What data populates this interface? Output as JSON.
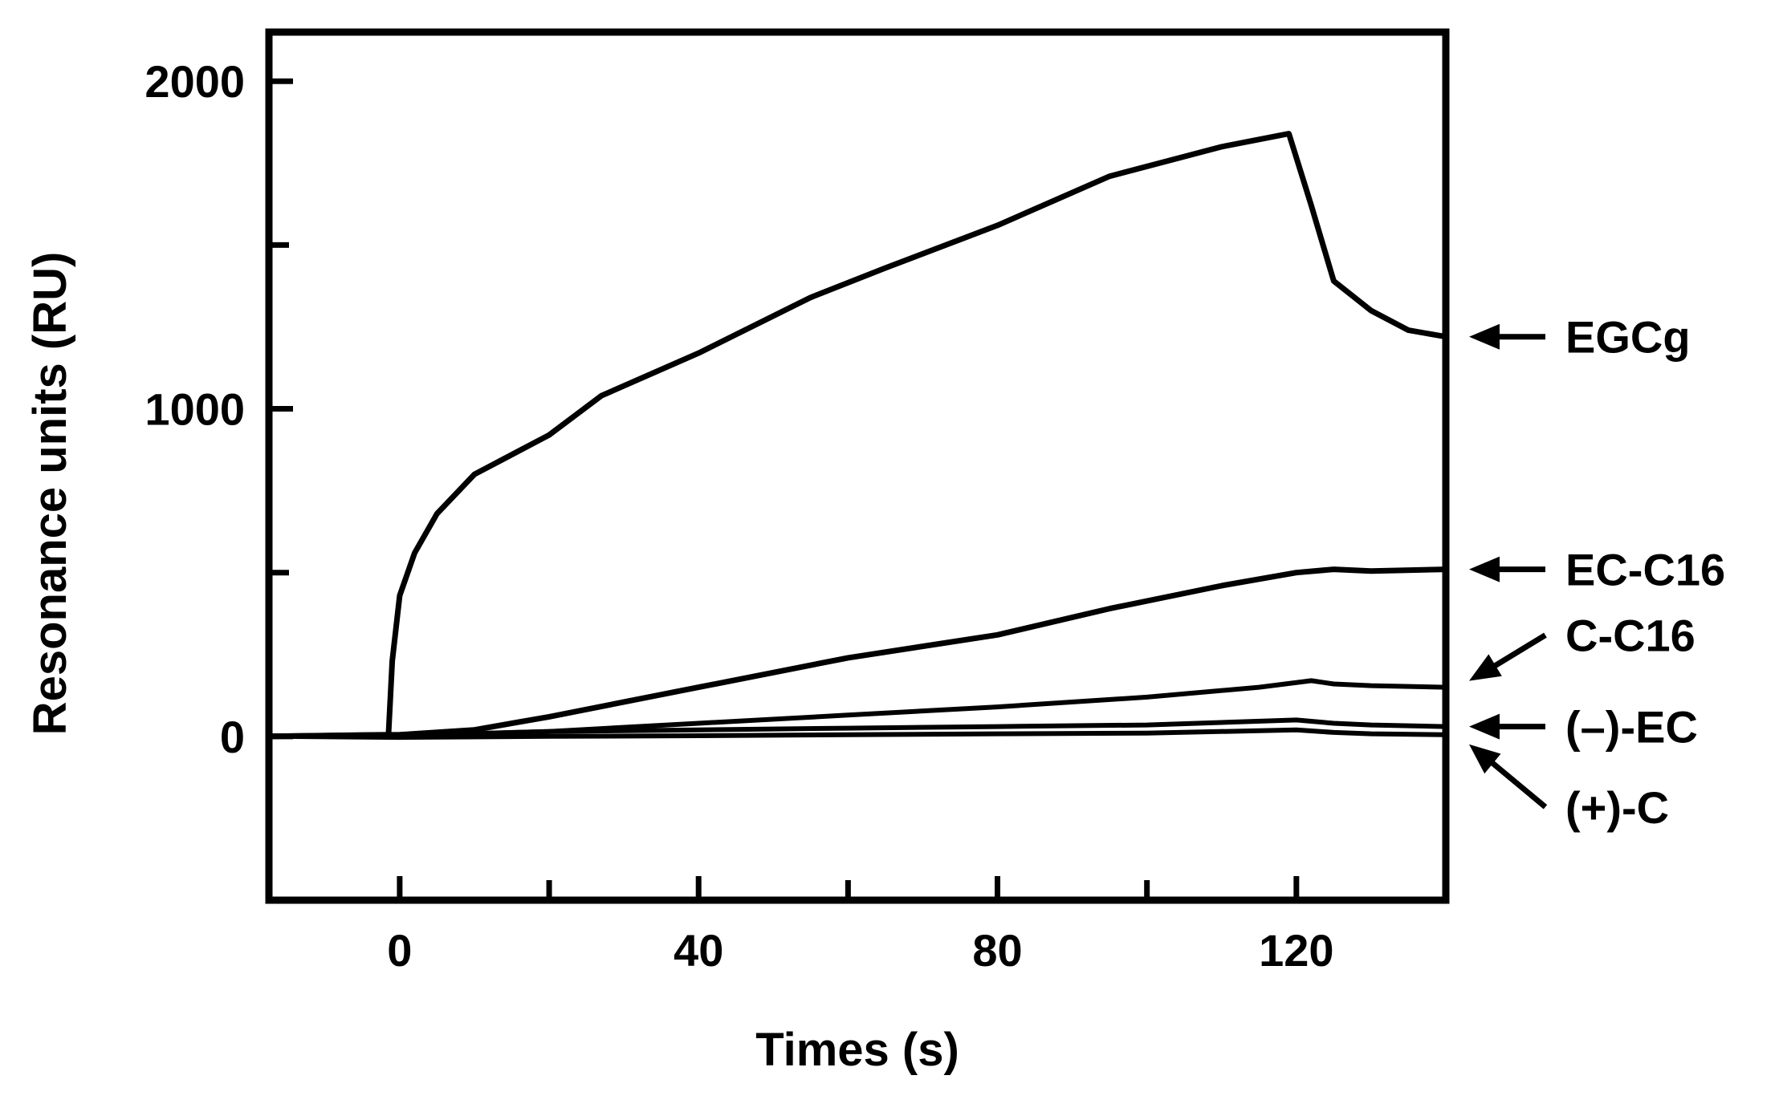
{
  "chart_data": {
    "type": "line",
    "title": "",
    "xlabel": "Times (s)",
    "ylabel": "Resonance units (RU)",
    "xlim": [
      -17.5,
      140
    ],
    "ylim": [
      -500,
      2150
    ],
    "x_ticks_major": [
      0,
      40,
      80,
      120
    ],
    "x_ticks_minor": [
      20,
      60,
      100
    ],
    "y_ticks_major": [
      0,
      1000,
      2000
    ],
    "y_ticks_minor": [
      500,
      1500
    ],
    "grid": false,
    "legend": "labels with arrows at right of each curve",
    "series": [
      {
        "name": "EGCg",
        "x": [
          -17.5,
          -1.5,
          -1,
          0,
          2,
          5,
          10,
          20,
          27,
          40,
          55,
          65,
          80,
          95,
          110,
          119,
          122,
          125,
          130,
          135,
          140
        ],
        "y": [
          0,
          5,
          230,
          430,
          560,
          680,
          800,
          920,
          1040,
          1170,
          1340,
          1430,
          1560,
          1710,
          1800,
          1840,
          1620,
          1390,
          1300,
          1240,
          1220
        ]
      },
      {
        "name": "EC-C16",
        "x": [
          -17.5,
          0,
          10,
          20,
          40,
          60,
          80,
          95,
          110,
          120,
          125,
          130,
          140
        ],
        "y": [
          0,
          5,
          20,
          60,
          150,
          240,
          310,
          390,
          460,
          500,
          510,
          505,
          510
        ]
      },
      {
        "name": "C-C16",
        "x": [
          -17.5,
          0,
          20,
          40,
          60,
          80,
          100,
          115,
          122,
          125,
          130,
          140
        ],
        "y": [
          0,
          3,
          15,
          40,
          65,
          90,
          120,
          150,
          170,
          160,
          155,
          150
        ]
      },
      {
        "name": "(–)-EC",
        "x": [
          -17.5,
          0,
          20,
          40,
          60,
          80,
          100,
          120,
          125,
          130,
          140
        ],
        "y": [
          0,
          2,
          15,
          20,
          25,
          30,
          35,
          50,
          40,
          35,
          30
        ]
      },
      {
        "name": "(+)-C",
        "x": [
          -17.5,
          0,
          20,
          40,
          60,
          80,
          100,
          120,
          125,
          130,
          140
        ],
        "y": [
          0,
          -3,
          0,
          2,
          5,
          8,
          10,
          20,
          12,
          8,
          5
        ]
      }
    ]
  }
}
